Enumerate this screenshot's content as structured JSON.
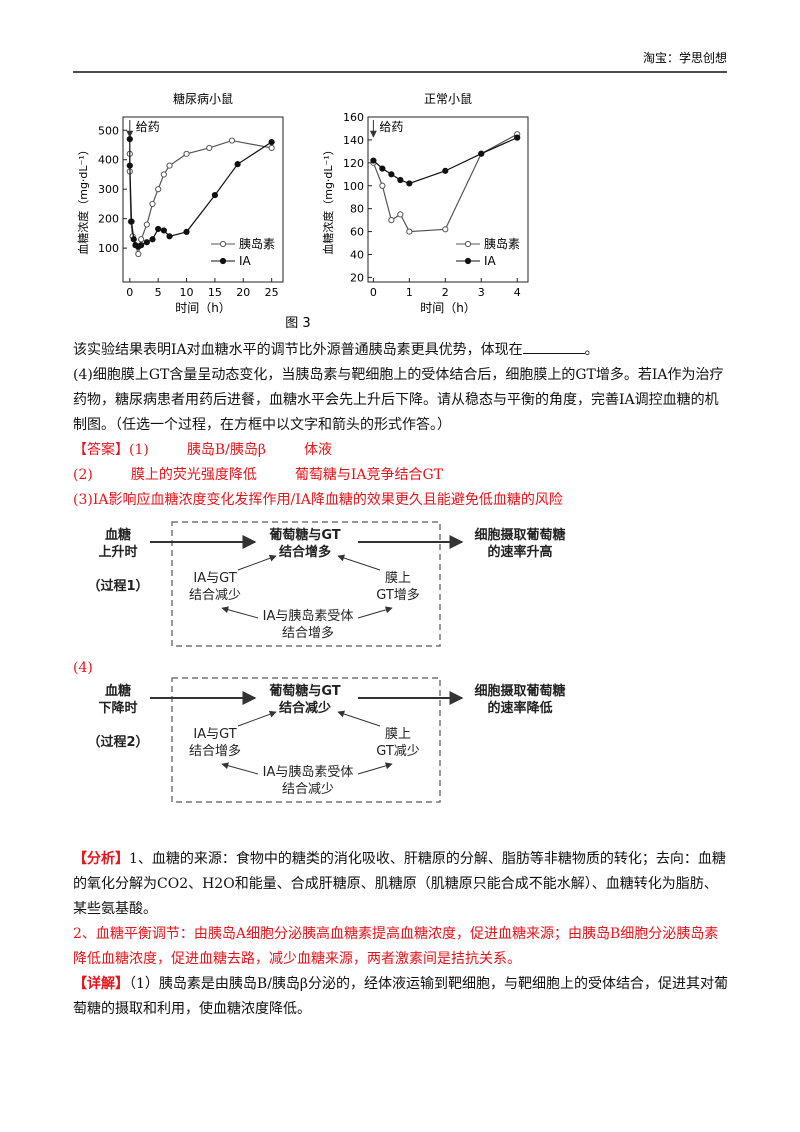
{
  "header": {
    "title": "淘宝：学思创想"
  },
  "chart_data": [
    {
      "type": "line",
      "title": "糖尿病小鼠",
      "xlabel": "时间（h）",
      "ylabel": "血糖浓度（mg·dL⁻¹）",
      "annotation": "给药",
      "xlim": [
        -1.2,
        27
      ],
      "xticks": [
        0,
        5,
        10,
        15,
        20,
        25
      ],
      "ylim": [
        -15,
        545
      ],
      "yticks": [
        100,
        200,
        300,
        400,
        500
      ],
      "legend": "lower right",
      "series": [
        {
          "name": "胰岛素",
          "color": "#555555",
          "marker": "open",
          "x": [
            0,
            0,
            0.2,
            0.5,
            1,
            1.5,
            2,
            3,
            4,
            5,
            6,
            7,
            10,
            14,
            18,
            25
          ],
          "values": [
            420,
            360,
            190,
            140,
            110,
            80,
            130,
            180,
            250,
            300,
            350,
            380,
            420,
            440,
            465,
            440
          ]
        },
        {
          "name": "IA",
          "color": "#111111",
          "marker": "filled",
          "x": [
            0,
            0,
            0.3,
            0.7,
            1,
            1.5,
            2,
            3,
            4,
            5,
            6,
            7,
            10,
            15,
            19,
            25
          ],
          "values": [
            470,
            380,
            190,
            130,
            110,
            105,
            110,
            120,
            130,
            165,
            160,
            140,
            155,
            280,
            385,
            460
          ]
        }
      ]
    },
    {
      "type": "line",
      "title": "正常小鼠",
      "xlabel": "时间（h）",
      "ylabel": "血糖浓度（mg·dL⁻¹）",
      "annotation": "给药",
      "xlim": [
        -0.15,
        4.3
      ],
      "xticks": [
        0,
        1,
        2,
        3,
        4
      ],
      "ylim": [
        16,
        160
      ],
      "yticks": [
        20,
        40,
        60,
        80,
        100,
        120,
        140,
        160
      ],
      "legend": "lower right",
      "series": [
        {
          "name": "胰岛素",
          "color": "#555555",
          "marker": "open",
          "x": [
            0,
            0.25,
            0.5,
            0.75,
            1,
            2,
            3,
            4
          ],
          "values": [
            120,
            100,
            70,
            75,
            60,
            62,
            128,
            145
          ]
        },
        {
          "name": "IA",
          "color": "#111111",
          "marker": "filled",
          "x": [
            0,
            0.25,
            0.5,
            0.75,
            1,
            2,
            3,
            4
          ],
          "values": [
            122,
            115,
            110,
            105,
            102,
            113,
            128,
            142
          ]
        }
      ]
    }
  ],
  "figure_caption": "图 3",
  "question3": {
    "before": "该实验结果表明IA对血糖水平的调节比外源普通胰岛素更具优势，体现在",
    "after": "。"
  },
  "question4": "(4)细胞膜上GT含量呈动态变化，当胰岛素与靶细胞上的受体结合后，细胞膜上的GT增多。若IA作为治疗药物，糖尿病患者用药后进餐，血糖水平会先上升后下降。请从稳态与平衡的角度，完善IA调控血糖的机制图。（任选一个过程，在方框中以文字和箭头的形式作答。）",
  "answers": [
    [
      "【答案】(1)",
      "胰岛B/胰岛β",
      "体液"
    ],
    [
      "(2)",
      "膜上的荧光强度降低",
      "葡萄糖与IA竞争结合GT"
    ],
    [
      "(3)IA影响应血糖浓度变化发挥作用/IA降血糖的效果更久且能避免低血糖的风险"
    ]
  ],
  "answer4_label": "(4)",
  "diagrams": [
    {
      "nodes": [
        [
          "血糖",
          "上升时"
        ],
        [
          "葡萄糖与GT",
          "结合增多"
        ],
        [
          "细胞摄取葡萄糖",
          "的速率升高"
        ],
        [
          "（过程1）"
        ],
        [
          "IA与GT",
          "结合减少"
        ],
        [
          "膜上",
          "GT增多"
        ],
        [
          "IA与胰岛素受体",
          "结合增多"
        ]
      ]
    },
    {
      "nodes": [
        [
          "血糖",
          "下降时"
        ],
        [
          "葡萄糖与GT",
          "结合减少"
        ],
        [
          "细胞摄取葡萄糖",
          "的速率降低"
        ],
        [
          "（过程2）"
        ],
        [
          "IA与GT",
          "结合增多"
        ],
        [
          "膜上",
          "GT减少"
        ],
        [
          "IA与胰岛素受体",
          "结合减少"
        ]
      ]
    }
  ],
  "analysis": {
    "label": "【分析】",
    "part1": "1、血糖的来源：食物中的糖类的消化吸收、肝糖原的分解、脂肪等非糖物质的转化；去向：血糖的氧化分解为CO2、H2O和能量、合成肝糖原、肌糖原（肌糖原只能合成不能水解）、血糖转化为脂肪、某些氨基酸。",
    "part2": "2、血糖平衡调节：由胰岛A细胞分泌胰高血糖素提高血糖浓度，促进血糖来源；由胰岛B细胞分泌胰岛素降低血糖浓度，促进血糖去路，减少血糖来源，两者激素间是拮抗关系。"
  },
  "detail": {
    "label": "【详解】",
    "text": "（1）胰岛素是由胰岛B/胰岛β分泌的，经体液运输到靶细胞，与靶细胞上的受体结合，促进其对葡萄糖的摄取和利用，使血糖浓度降低。"
  }
}
